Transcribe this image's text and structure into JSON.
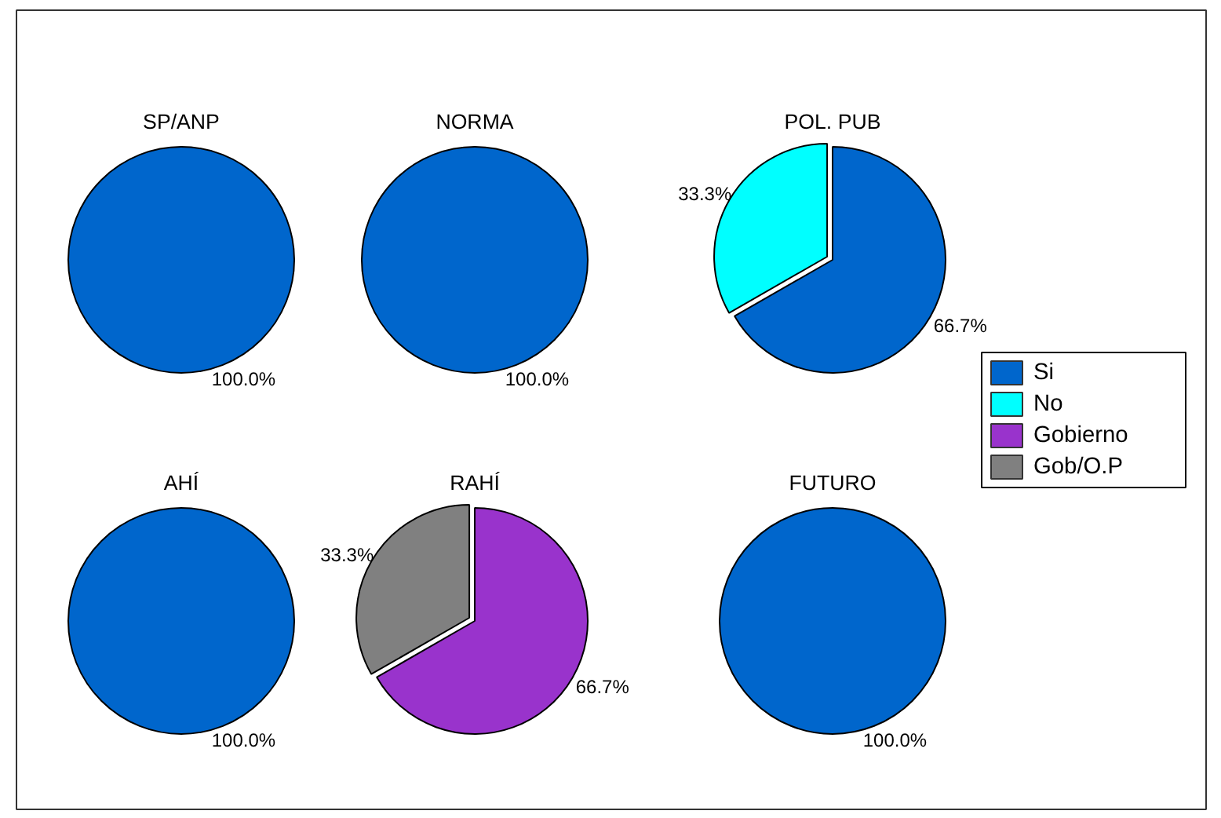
{
  "chart_data": {
    "type": "pie",
    "categories": [
      "Si",
      "No",
      "Gobierno",
      "Gob/O.P"
    ],
    "colors": [
      "#0066cc",
      "#00ffff",
      "#9933cc",
      "#808080"
    ],
    "legend": "right",
    "series": [
      {
        "name": "SP/ANP",
        "values": [
          100,
          0,
          0,
          0
        ],
        "value_labels": [
          "100.0%",
          null,
          null,
          null
        ]
      },
      {
        "name": "NORMA",
        "values": [
          100,
          0,
          0,
          0
        ],
        "value_labels": [
          "100.0%",
          null,
          null,
          null
        ]
      },
      {
        "name": "POL. PUB",
        "values": [
          66.7,
          33.3,
          0,
          0
        ],
        "value_labels": [
          "66.7%",
          "33.3%",
          null,
          null
        ]
      },
      {
        "name": "AHÍ",
        "values": [
          100,
          0,
          0,
          0
        ],
        "value_labels": [
          "100.0%",
          null,
          null,
          null
        ]
      },
      {
        "name": "RAHÍ",
        "values": [
          0,
          0,
          66.7,
          33.3
        ],
        "value_labels": [
          null,
          null,
          "66.7%",
          "33.3%"
        ]
      },
      {
        "name": "FUTURO",
        "values": [
          100,
          0,
          0,
          0
        ],
        "value_labels": [
          "100.0%",
          null,
          null,
          null
        ]
      }
    ]
  }
}
